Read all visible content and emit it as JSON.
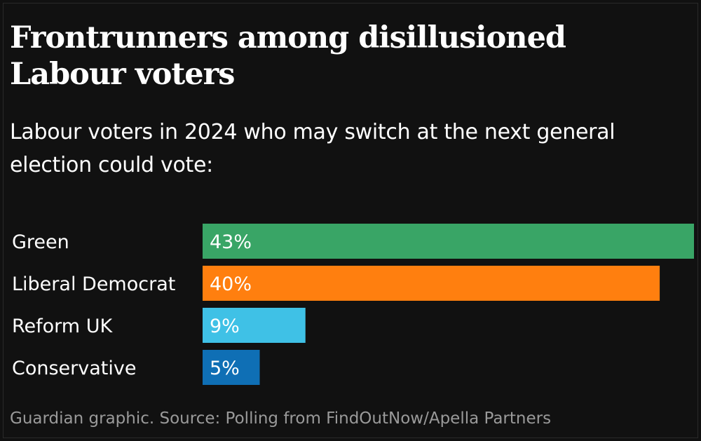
{
  "header": {
    "title": "Frontrunners among disillusioned Labour voters",
    "subtitle": "Labour voters in 2024 who may switch at the next general election could vote:"
  },
  "footer": {
    "source": "Guardian graphic. Source: Polling from FindOutNow/Apella Partners"
  },
  "chart_data": {
    "type": "bar",
    "orientation": "horizontal",
    "title": "Frontrunners among disillusioned Labour voters",
    "subtitle": "Labour voters in 2024 who may switch at the next general election could vote:",
    "categories": [
      "Green",
      "Liberal Democrat",
      "Reform UK",
      "Conservative"
    ],
    "values": [
      43,
      40,
      9,
      5
    ],
    "value_labels": [
      "43%",
      "40%",
      "9%",
      "5%"
    ],
    "colors": [
      "#39a566",
      "#ff7f0f",
      "#3fc1e6",
      "#0f6fb5"
    ],
    "xlim": [
      0,
      43
    ],
    "grid": false,
    "legend": "none"
  }
}
